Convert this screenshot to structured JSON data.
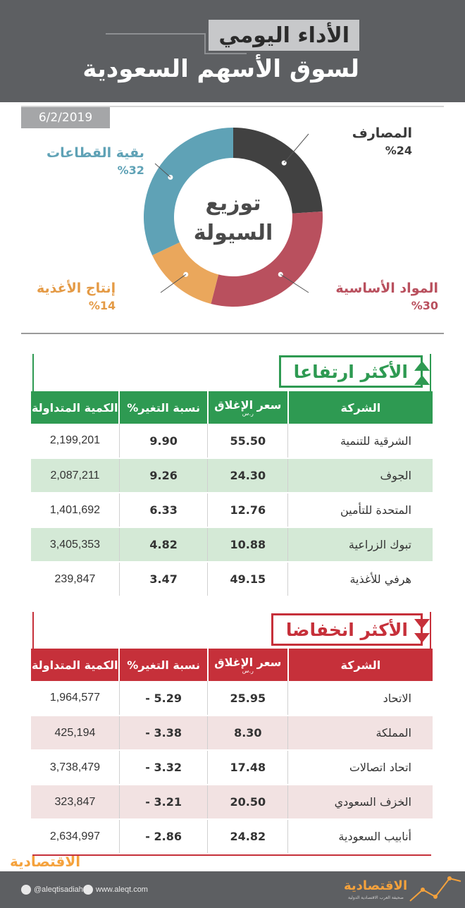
{
  "header": {
    "daily_label": "الأداء اليومي",
    "title": "لسوق الأسهم السعودية"
  },
  "date": "6/2/2019",
  "liquidity": {
    "center_line1": "توزيع",
    "center_line2": "السيولة",
    "segments": [
      {
        "name": "المصارف",
        "percent_label": "%24",
        "value": 24,
        "color": "#414141"
      },
      {
        "name": "المواد الأساسية",
        "percent_label": "%30",
        "value": 30,
        "color": "#b9505e"
      },
      {
        "name": "إنتاج الأغذية",
        "percent_label": "%14",
        "value": 14,
        "color": "#eaa75c"
      },
      {
        "name": "بقية القطاعات",
        "percent_label": "%32",
        "value": 32,
        "color": "#5fa2b6"
      }
    ]
  },
  "gainers": {
    "title": "الأكثر ارتفاعا",
    "color": "#2e9a52",
    "columns": [
      "الشركة",
      "سعر الإغلاق",
      "نسبة التغير%",
      "الكمية المتداولة"
    ],
    "currency_note": "ر.س",
    "rows": [
      {
        "company": "الشرقية للتنمية",
        "close": "55.50",
        "change": "9.90",
        "volume": "2,199,201"
      },
      {
        "company": "الجوف",
        "close": "24.30",
        "change": "9.26",
        "volume": "2,087,211"
      },
      {
        "company": "المتحدة للتأمين",
        "close": "12.76",
        "change": "6.33",
        "volume": "1,401,692"
      },
      {
        "company": "تبوك الزراعية",
        "close": "10.88",
        "change": "4.82",
        "volume": "3,405,353"
      },
      {
        "company": "هرفي للأغذية",
        "close": "49.15",
        "change": "3.47",
        "volume": "239,847"
      }
    ]
  },
  "losers": {
    "title": "الأكثر انخفاضا",
    "color": "#c6303a",
    "columns": [
      "الشركة",
      "سعر الإغلاق",
      "نسبة التغير%",
      "الكمية المتداولة"
    ],
    "currency_note": "ر.س",
    "rows": [
      {
        "company": "الاتحاد",
        "close": "25.95",
        "change": "5.29 -",
        "volume": "1,964,577"
      },
      {
        "company": "المملكة",
        "close": "8.30",
        "change": "3.38 -",
        "volume": "425,194"
      },
      {
        "company": "اتحاد اتصالات",
        "close": "17.48",
        "change": "3.32 -",
        "volume": "3,738,479"
      },
      {
        "company": "الخزف السعودي",
        "close": "20.50",
        "change": "3.21 -",
        "volume": "323,847"
      },
      {
        "company": "أنابيب السعودية",
        "close": "24.82",
        "change": "2.86 -",
        "volume": "2,634,997"
      }
    ]
  },
  "footer": {
    "brand": "الاقتصادية",
    "brand_tagline": "صحيفة العرب الاقتصادية الدولية",
    "twitter": "@aleqtisadiah",
    "website": "www.aleqt.com"
  }
}
